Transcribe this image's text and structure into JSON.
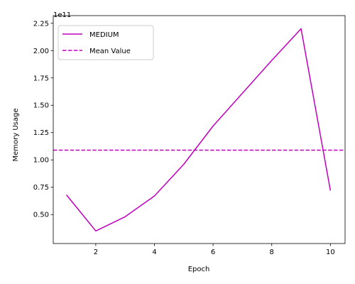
{
  "chart_data": {
    "type": "line",
    "xlabel": "Epoch",
    "ylabel": "Memory Usage",
    "y_offset_label": "1e11",
    "xlim": [
      0.55,
      10.5
    ],
    "ylim": [
      0.235,
      2.32
    ],
    "x_ticks": [
      2,
      4,
      6,
      8,
      10
    ],
    "x_tick_labels": [
      "2",
      "4",
      "6",
      "8",
      "10"
    ],
    "y_ticks": [
      0.5,
      0.75,
      1.0,
      1.25,
      1.5,
      1.75,
      2.0,
      2.25
    ],
    "y_tick_labels": [
      "0.50",
      "0.75",
      "1.00",
      "1.25",
      "1.50",
      "1.75",
      "2.00",
      "2.25"
    ],
    "grid": false,
    "legend_position": "upper-left",
    "series": [
      {
        "name": "MEDIUM",
        "style": "solid",
        "color": "#bf00bf",
        "x": [
          1,
          2,
          3,
          4,
          5,
          6,
          7,
          8,
          9,
          10
        ],
        "y": [
          0.68,
          0.35,
          0.48,
          0.67,
          0.96,
          1.31,
          1.61,
          1.91,
          2.2,
          0.72
        ]
      }
    ],
    "reference_lines": [
      {
        "name": "Mean Value",
        "style": "dashed",
        "color": "#bf00bf",
        "y": 1.089
      }
    ]
  }
}
